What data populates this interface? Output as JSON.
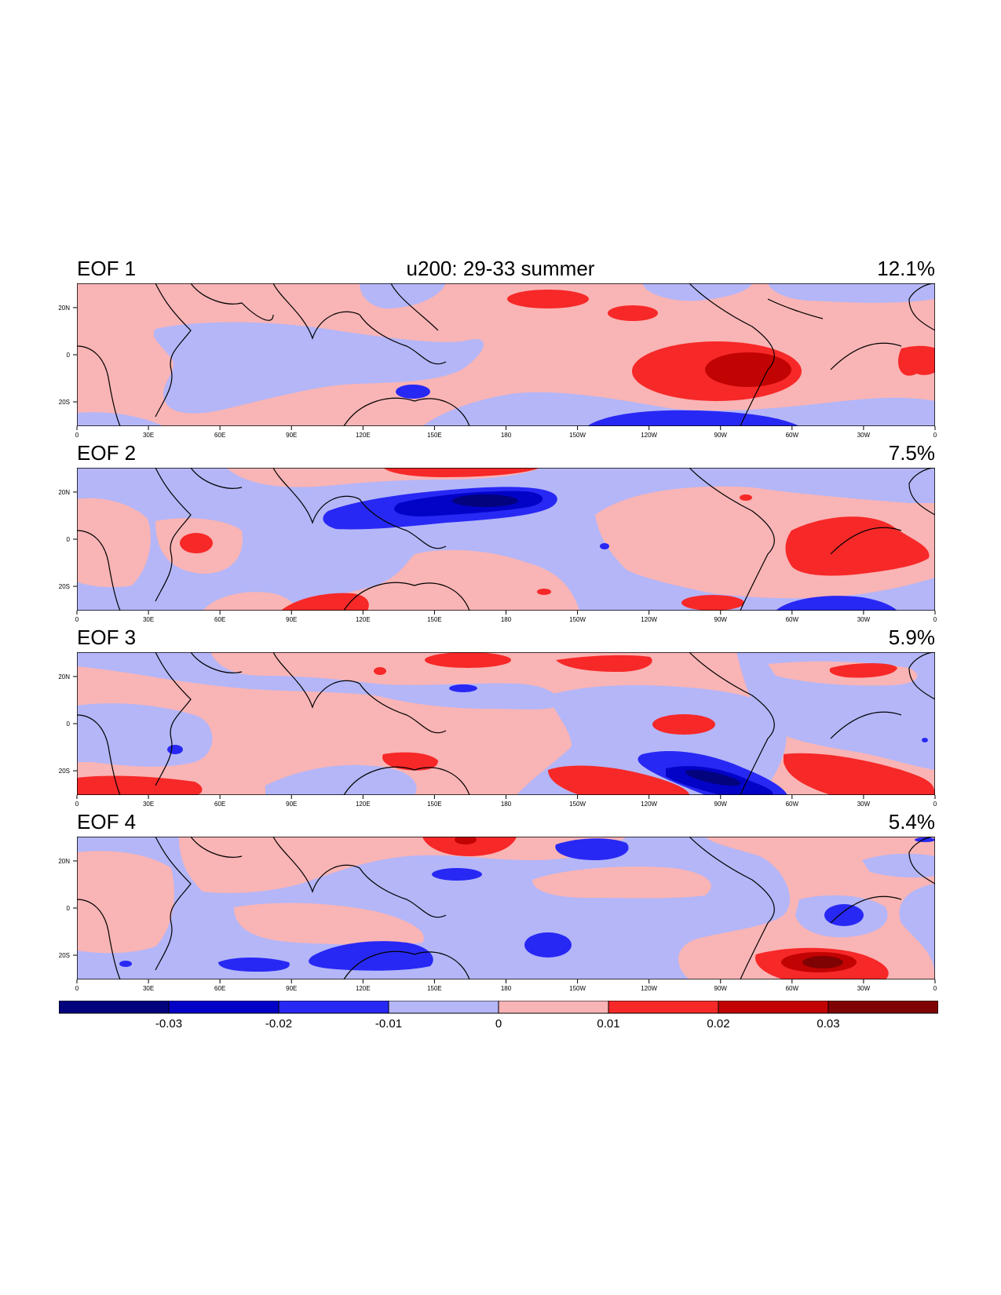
{
  "figure": {
    "main_title": "u200: 29-33 summer"
  },
  "panels": [
    {
      "label": "EOF 1",
      "percent": "12.1%"
    },
    {
      "label": "EOF 2",
      "percent": "7.5%"
    },
    {
      "label": "EOF 3",
      "percent": "5.9%"
    },
    {
      "label": "EOF 4",
      "percent": "5.4%"
    }
  ],
  "axes": {
    "x_ticks": [
      "0",
      "30E",
      "60E",
      "90E",
      "120E",
      "150E",
      "180",
      "150W",
      "120W",
      "90W",
      "60W",
      "30W",
      "0"
    ],
    "y_ticks": [
      "20N",
      "0",
      "20S"
    ]
  },
  "colorbar": {
    "labels": [
      "-0.03",
      "-0.02",
      "-0.01",
      "0",
      "0.01",
      "0.02",
      "0.03"
    ],
    "colors": [
      "#03037e",
      "#0303c8",
      "#2828f5",
      "#b4b6f8",
      "#f9b4b5",
      "#f72828",
      "#c20303",
      "#800303"
    ]
  },
  "colors": {
    "neg_light": "#b4b6f8",
    "pos_light": "#f9b4b5",
    "pos_mid": "#f72828",
    "pos_dark": "#c20303",
    "pos_darkest": "#800303",
    "neg_mid": "#2828f5",
    "neg_dark": "#0303c8",
    "neg_darkest": "#03037e"
  }
}
